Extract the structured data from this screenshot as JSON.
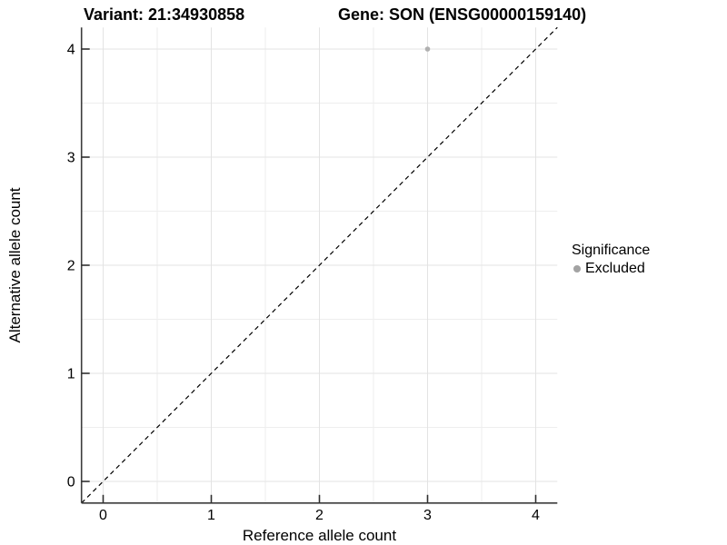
{
  "chart_data": {
    "type": "scatter",
    "titles": {
      "variant": "Variant: 21:34930858",
      "gene": "Gene: SON (ENSG00000159140)"
    },
    "xlabel": "Reference allele count",
    "ylabel": "Alternative allele count",
    "xlim": [
      -0.2,
      4.2
    ],
    "ylim": [
      -0.2,
      4.2
    ],
    "x_ticks": [
      0,
      1,
      2,
      3,
      4
    ],
    "y_ticks": [
      0,
      1,
      2,
      3,
      4
    ],
    "x_minor_ticks": [
      0.5,
      1.5,
      2.5,
      3.5
    ],
    "y_minor_ticks": [
      0.5,
      1.5,
      2.5,
      3.5
    ],
    "grid": {
      "major": true,
      "minor": true
    },
    "reference_line": {
      "kind": "identity y=x",
      "style": "dashed",
      "color": "#000000"
    },
    "series": [
      {
        "name": "Excluded",
        "color": "#b0b0b0",
        "points": [
          {
            "x": 3,
            "y": 4
          }
        ]
      }
    ],
    "legend": {
      "title": "Significance",
      "position": "right",
      "entries": [
        {
          "label": "Excluded",
          "color": "#a3a3a3"
        }
      ]
    },
    "colors": {
      "background": "#ffffff",
      "grid_major": "#e3e3e3",
      "grid_minor": "#eeeeee",
      "axis_line": "#3c3c3c",
      "tick_mark": "#2f2f2f",
      "text": "#000000"
    }
  }
}
